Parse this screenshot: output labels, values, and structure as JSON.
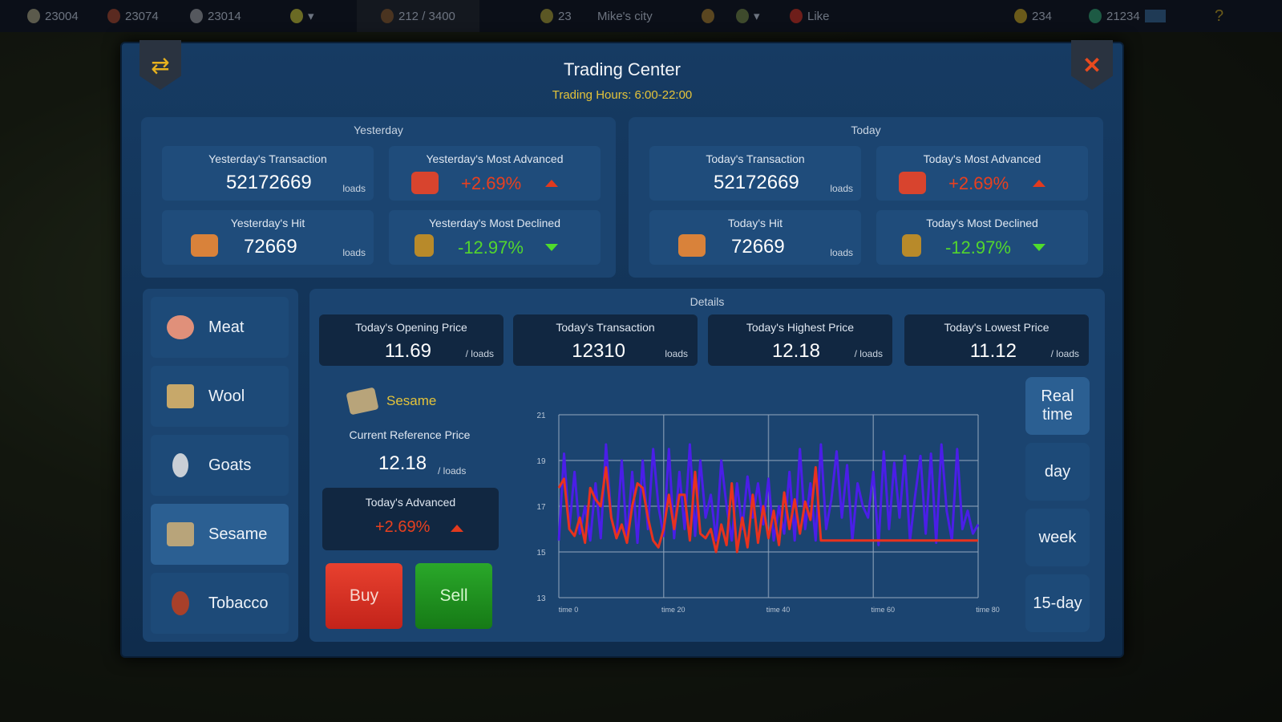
{
  "topbar": {
    "res1": "23004",
    "res2": "23074",
    "res3": "23014",
    "army": "212 / 3400",
    "moon": "23",
    "city": "Mike's city",
    "like": "Like",
    "gold": "234",
    "gems": "21234"
  },
  "dialog": {
    "title": "Trading Center",
    "hours": "Trading Hours: 6:00-22:00"
  },
  "yesterday": {
    "title": "Yesterday",
    "transaction": {
      "label": "Yesterday's Transaction",
      "value": "52172669",
      "unit": "loads"
    },
    "advanced": {
      "label": "Yesterday's Most Advanced",
      "value": "+2.69%"
    },
    "hit": {
      "label": "Yesterday's Hit",
      "value": "72669",
      "unit": "loads"
    },
    "declined": {
      "label": "Yesterday's Most Declined",
      "value": "-12.97%"
    }
  },
  "today": {
    "title": "Today",
    "transaction": {
      "label": "Today's Transaction",
      "value": "52172669",
      "unit": "loads"
    },
    "advanced": {
      "label": "Today's Most Advanced",
      "value": "+2.69%"
    },
    "hit": {
      "label": "Today's Hit",
      "value": "72669",
      "unit": "loads"
    },
    "declined": {
      "label": "Today's Most Declined",
      "value": "-12.97%"
    }
  },
  "goods": [
    {
      "label": "Meat"
    },
    {
      "label": "Wool"
    },
    {
      "label": "Goats"
    },
    {
      "label": "Sesame",
      "active": true
    },
    {
      "label": "Tobacco"
    }
  ],
  "details": {
    "title": "Details",
    "opening": {
      "label": "Today's Opening Price",
      "value": "11.69",
      "unit": "/ loads"
    },
    "transaction": {
      "label": "Today's Transaction",
      "value": "12310",
      "unit": "loads"
    },
    "highest": {
      "label": "Today's Highest Price",
      "value": "12.18",
      "unit": "/ loads"
    },
    "lowest": {
      "label": "Today's Lowest Price",
      "value": "11.12",
      "unit": "/ loads"
    },
    "item": "Sesame",
    "ref_label": "Current Reference Price",
    "ref_value": "12.18",
    "ref_unit": "/ loads",
    "adv_label": "Today's Advanced",
    "adv_value": "+2.69%",
    "buy": "Buy",
    "sell": "Sell"
  },
  "timeframes": [
    "Real time",
    "day",
    "week",
    "15-day"
  ],
  "colors": {
    "up": "#e8401f",
    "down": "#53d62d",
    "series_blue": "#4a1ee8",
    "series_red": "#e8321e",
    "gold": "#e4c33a"
  },
  "chart_data": {
    "type": "line",
    "ylim": [
      13,
      21
    ],
    "xlim": [
      0,
      80
    ],
    "yticks": [
      "21",
      "19",
      "17",
      "15",
      "13"
    ],
    "xticks": [
      "time 0",
      "time 20",
      "time 40",
      "time 60",
      "time 80"
    ],
    "grid": true,
    "series": [
      {
        "color": "#4a1ee8",
        "points": [
          [
            0,
            15.5
          ],
          [
            1,
            19.3
          ],
          [
            2,
            16
          ],
          [
            3,
            18.5
          ],
          [
            4,
            15.8
          ],
          [
            5,
            17
          ],
          [
            6,
            15.5
          ],
          [
            7,
            18
          ],
          [
            8,
            15.6
          ],
          [
            9,
            19.7
          ],
          [
            10,
            16.5
          ],
          [
            11,
            15.6
          ],
          [
            12,
            19
          ],
          [
            13,
            15.5
          ],
          [
            14,
            18.5
          ],
          [
            15,
            15.4
          ],
          [
            16,
            19
          ],
          [
            17,
            16
          ],
          [
            18,
            19.5
          ],
          [
            19,
            17
          ],
          [
            20,
            15.7
          ],
          [
            21,
            19.5
          ],
          [
            22,
            15.6
          ],
          [
            23,
            18.5
          ],
          [
            24,
            16
          ],
          [
            25,
            19.7
          ],
          [
            26,
            15.7
          ],
          [
            27,
            19
          ],
          [
            28,
            16.5
          ],
          [
            29,
            17.5
          ],
          [
            30,
            15.5
          ],
          [
            31,
            19
          ],
          [
            32,
            17
          ],
          [
            33,
            15.5
          ],
          [
            34,
            18
          ],
          [
            35,
            16
          ],
          [
            36,
            18.3
          ],
          [
            37,
            16.5
          ],
          [
            38,
            18
          ],
          [
            39,
            16.2
          ],
          [
            40,
            18.2
          ],
          [
            41,
            15.5
          ],
          [
            42,
            17
          ],
          [
            43,
            15.8
          ],
          [
            44,
            18.5
          ],
          [
            45,
            15.5
          ],
          [
            46,
            19.5
          ],
          [
            47,
            16
          ],
          [
            48,
            18
          ],
          [
            49,
            15.5
          ],
          [
            50,
            19.7
          ],
          [
            51,
            16
          ],
          [
            52,
            17.3
          ],
          [
            53,
            19.4
          ],
          [
            54,
            16.5
          ],
          [
            55,
            18.8
          ],
          [
            56,
            15.5
          ],
          [
            57,
            18
          ],
          [
            58,
            17
          ],
          [
            59,
            16.5
          ],
          [
            60,
            18.5
          ],
          [
            61,
            15.3
          ],
          [
            62,
            19.4
          ],
          [
            63,
            16
          ],
          [
            64,
            18.9
          ],
          [
            65,
            16.5
          ],
          [
            66,
            19.2
          ],
          [
            67,
            15.5
          ],
          [
            68,
            17.5
          ],
          [
            69,
            19.2
          ],
          [
            70,
            15.8
          ],
          [
            71,
            19.3
          ],
          [
            72,
            15.4
          ],
          [
            73,
            19.7
          ],
          [
            74,
            16.8
          ],
          [
            75,
            15.5
          ],
          [
            76,
            19.5
          ],
          [
            77,
            16
          ],
          [
            78,
            16.8
          ],
          [
            79,
            15.8
          ],
          [
            80,
            16.2
          ]
        ]
      },
      {
        "color": "#e8321e",
        "points": [
          [
            0,
            17.8
          ],
          [
            1,
            18.2
          ],
          [
            2,
            16
          ],
          [
            3,
            15.7
          ],
          [
            4,
            16.5
          ],
          [
            5,
            15.4
          ],
          [
            6,
            17.8
          ],
          [
            7,
            17.3
          ],
          [
            8,
            17
          ],
          [
            9,
            18.7
          ],
          [
            10,
            16.5
          ],
          [
            11,
            15.6
          ],
          [
            12,
            16.2
          ],
          [
            13,
            15.4
          ],
          [
            14,
            17
          ],
          [
            15,
            18
          ],
          [
            16,
            17.8
          ],
          [
            17,
            16.5
          ],
          [
            18,
            15.5
          ],
          [
            19,
            15.2
          ],
          [
            20,
            16
          ],
          [
            21,
            17.5
          ],
          [
            22,
            16
          ],
          [
            23,
            17.5
          ],
          [
            24,
            17.5
          ],
          [
            25,
            15.5
          ],
          [
            26,
            18.5
          ],
          [
            27,
            15.8
          ],
          [
            28,
            15.6
          ],
          [
            29,
            16
          ],
          [
            30,
            15
          ],
          [
            31,
            16.2
          ],
          [
            32,
            15.3
          ],
          [
            33,
            18
          ],
          [
            34,
            15
          ],
          [
            35,
            16.5
          ],
          [
            36,
            15.2
          ],
          [
            37,
            17.5
          ],
          [
            38,
            15.4
          ],
          [
            39,
            17
          ],
          [
            40,
            15.6
          ],
          [
            41,
            16.8
          ],
          [
            42,
            15.3
          ],
          [
            43,
            17.6
          ],
          [
            44,
            16
          ],
          [
            45,
            17.3
          ],
          [
            46,
            15.8
          ],
          [
            47,
            17.2
          ],
          [
            48,
            16.4
          ],
          [
            49,
            18.7
          ],
          [
            50,
            15.5
          ],
          [
            80,
            15.5
          ]
        ]
      }
    ]
  }
}
